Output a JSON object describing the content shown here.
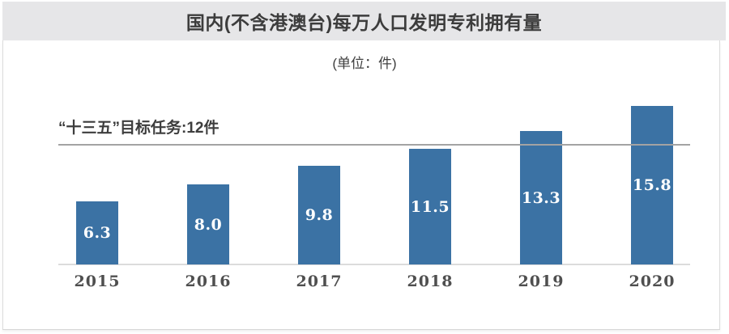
{
  "header": {
    "title": "国内(不含港澳台)每万人口发明专利拥有量"
  },
  "unit_label": "(单位：件)",
  "target": {
    "label": "“十三五”目标任务:12件",
    "value": 12
  },
  "colors": {
    "bar": "#3b72a4",
    "header_bg": "#e6e6e8",
    "target_line": "#a3a3a3",
    "axis_line": "#dcdcdc",
    "title_text": "#3c3c3c",
    "value_text": "#ffffff"
  },
  "chart_data": {
    "type": "bar",
    "title": "国内(不含港澳台)每万人口发明专利拥有量",
    "unit": "(单位：件)",
    "categories": [
      "2015",
      "2016",
      "2017",
      "2018",
      "2019",
      "2020"
    ],
    "values": [
      6.3,
      8.0,
      9.8,
      11.5,
      13.3,
      15.8
    ],
    "value_labels": [
      "6.3",
      "8.0",
      "9.8",
      "11.5",
      "13.3",
      "15.8"
    ],
    "target_line": {
      "value": 12,
      "label": "“十三五”目标任务:12件"
    },
    "ylim": [
      0,
      18
    ],
    "grid": false,
    "legend": "none",
    "data_label_position": "inside-center-white"
  }
}
